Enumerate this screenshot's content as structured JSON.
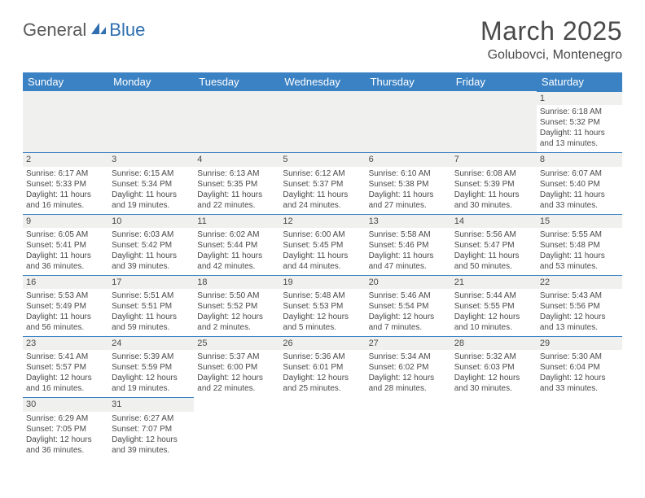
{
  "logo": {
    "part1": "General",
    "part2": "Blue"
  },
  "title": "March 2025",
  "location": "Golubovci, Montenegro",
  "dayHeaders": [
    "Sunday",
    "Monday",
    "Tuesday",
    "Wednesday",
    "Thursday",
    "Friday",
    "Saturday"
  ],
  "colors": {
    "headerBg": "#3b82c4",
    "headerText": "#ffffff",
    "dayStripBg": "#f0f0ee",
    "text": "#4a4a4a",
    "logoGray": "#5a5a5a",
    "logoBlue": "#2f6fb0",
    "borderBlue": "#3b82c4"
  },
  "weeks": [
    [
      null,
      null,
      null,
      null,
      null,
      null,
      {
        "n": "1",
        "sunrise": "Sunrise: 6:18 AM",
        "sunset": "Sunset: 5:32 PM",
        "daylight": "Daylight: 11 hours and 13 minutes."
      }
    ],
    [
      {
        "n": "2",
        "sunrise": "Sunrise: 6:17 AM",
        "sunset": "Sunset: 5:33 PM",
        "daylight": "Daylight: 11 hours and 16 minutes."
      },
      {
        "n": "3",
        "sunrise": "Sunrise: 6:15 AM",
        "sunset": "Sunset: 5:34 PM",
        "daylight": "Daylight: 11 hours and 19 minutes."
      },
      {
        "n": "4",
        "sunrise": "Sunrise: 6:13 AM",
        "sunset": "Sunset: 5:35 PM",
        "daylight": "Daylight: 11 hours and 22 minutes."
      },
      {
        "n": "5",
        "sunrise": "Sunrise: 6:12 AM",
        "sunset": "Sunset: 5:37 PM",
        "daylight": "Daylight: 11 hours and 24 minutes."
      },
      {
        "n": "6",
        "sunrise": "Sunrise: 6:10 AM",
        "sunset": "Sunset: 5:38 PM",
        "daylight": "Daylight: 11 hours and 27 minutes."
      },
      {
        "n": "7",
        "sunrise": "Sunrise: 6:08 AM",
        "sunset": "Sunset: 5:39 PM",
        "daylight": "Daylight: 11 hours and 30 minutes."
      },
      {
        "n": "8",
        "sunrise": "Sunrise: 6:07 AM",
        "sunset": "Sunset: 5:40 PM",
        "daylight": "Daylight: 11 hours and 33 minutes."
      }
    ],
    [
      {
        "n": "9",
        "sunrise": "Sunrise: 6:05 AM",
        "sunset": "Sunset: 5:41 PM",
        "daylight": "Daylight: 11 hours and 36 minutes."
      },
      {
        "n": "10",
        "sunrise": "Sunrise: 6:03 AM",
        "sunset": "Sunset: 5:42 PM",
        "daylight": "Daylight: 11 hours and 39 minutes."
      },
      {
        "n": "11",
        "sunrise": "Sunrise: 6:02 AM",
        "sunset": "Sunset: 5:44 PM",
        "daylight": "Daylight: 11 hours and 42 minutes."
      },
      {
        "n": "12",
        "sunrise": "Sunrise: 6:00 AM",
        "sunset": "Sunset: 5:45 PM",
        "daylight": "Daylight: 11 hours and 44 minutes."
      },
      {
        "n": "13",
        "sunrise": "Sunrise: 5:58 AM",
        "sunset": "Sunset: 5:46 PM",
        "daylight": "Daylight: 11 hours and 47 minutes."
      },
      {
        "n": "14",
        "sunrise": "Sunrise: 5:56 AM",
        "sunset": "Sunset: 5:47 PM",
        "daylight": "Daylight: 11 hours and 50 minutes."
      },
      {
        "n": "15",
        "sunrise": "Sunrise: 5:55 AM",
        "sunset": "Sunset: 5:48 PM",
        "daylight": "Daylight: 11 hours and 53 minutes."
      }
    ],
    [
      {
        "n": "16",
        "sunrise": "Sunrise: 5:53 AM",
        "sunset": "Sunset: 5:49 PM",
        "daylight": "Daylight: 11 hours and 56 minutes."
      },
      {
        "n": "17",
        "sunrise": "Sunrise: 5:51 AM",
        "sunset": "Sunset: 5:51 PM",
        "daylight": "Daylight: 11 hours and 59 minutes."
      },
      {
        "n": "18",
        "sunrise": "Sunrise: 5:50 AM",
        "sunset": "Sunset: 5:52 PM",
        "daylight": "Daylight: 12 hours and 2 minutes."
      },
      {
        "n": "19",
        "sunrise": "Sunrise: 5:48 AM",
        "sunset": "Sunset: 5:53 PM",
        "daylight": "Daylight: 12 hours and 5 minutes."
      },
      {
        "n": "20",
        "sunrise": "Sunrise: 5:46 AM",
        "sunset": "Sunset: 5:54 PM",
        "daylight": "Daylight: 12 hours and 7 minutes."
      },
      {
        "n": "21",
        "sunrise": "Sunrise: 5:44 AM",
        "sunset": "Sunset: 5:55 PM",
        "daylight": "Daylight: 12 hours and 10 minutes."
      },
      {
        "n": "22",
        "sunrise": "Sunrise: 5:43 AM",
        "sunset": "Sunset: 5:56 PM",
        "daylight": "Daylight: 12 hours and 13 minutes."
      }
    ],
    [
      {
        "n": "23",
        "sunrise": "Sunrise: 5:41 AM",
        "sunset": "Sunset: 5:57 PM",
        "daylight": "Daylight: 12 hours and 16 minutes."
      },
      {
        "n": "24",
        "sunrise": "Sunrise: 5:39 AM",
        "sunset": "Sunset: 5:59 PM",
        "daylight": "Daylight: 12 hours and 19 minutes."
      },
      {
        "n": "25",
        "sunrise": "Sunrise: 5:37 AM",
        "sunset": "Sunset: 6:00 PM",
        "daylight": "Daylight: 12 hours and 22 minutes."
      },
      {
        "n": "26",
        "sunrise": "Sunrise: 5:36 AM",
        "sunset": "Sunset: 6:01 PM",
        "daylight": "Daylight: 12 hours and 25 minutes."
      },
      {
        "n": "27",
        "sunrise": "Sunrise: 5:34 AM",
        "sunset": "Sunset: 6:02 PM",
        "daylight": "Daylight: 12 hours and 28 minutes."
      },
      {
        "n": "28",
        "sunrise": "Sunrise: 5:32 AM",
        "sunset": "Sunset: 6:03 PM",
        "daylight": "Daylight: 12 hours and 30 minutes."
      },
      {
        "n": "29",
        "sunrise": "Sunrise: 5:30 AM",
        "sunset": "Sunset: 6:04 PM",
        "daylight": "Daylight: 12 hours and 33 minutes."
      }
    ],
    [
      {
        "n": "30",
        "sunrise": "Sunrise: 6:29 AM",
        "sunset": "Sunset: 7:05 PM",
        "daylight": "Daylight: 12 hours and 36 minutes."
      },
      {
        "n": "31",
        "sunrise": "Sunrise: 6:27 AM",
        "sunset": "Sunset: 7:07 PM",
        "daylight": "Daylight: 12 hours and 39 minutes."
      },
      null,
      null,
      null,
      null,
      null
    ]
  ]
}
